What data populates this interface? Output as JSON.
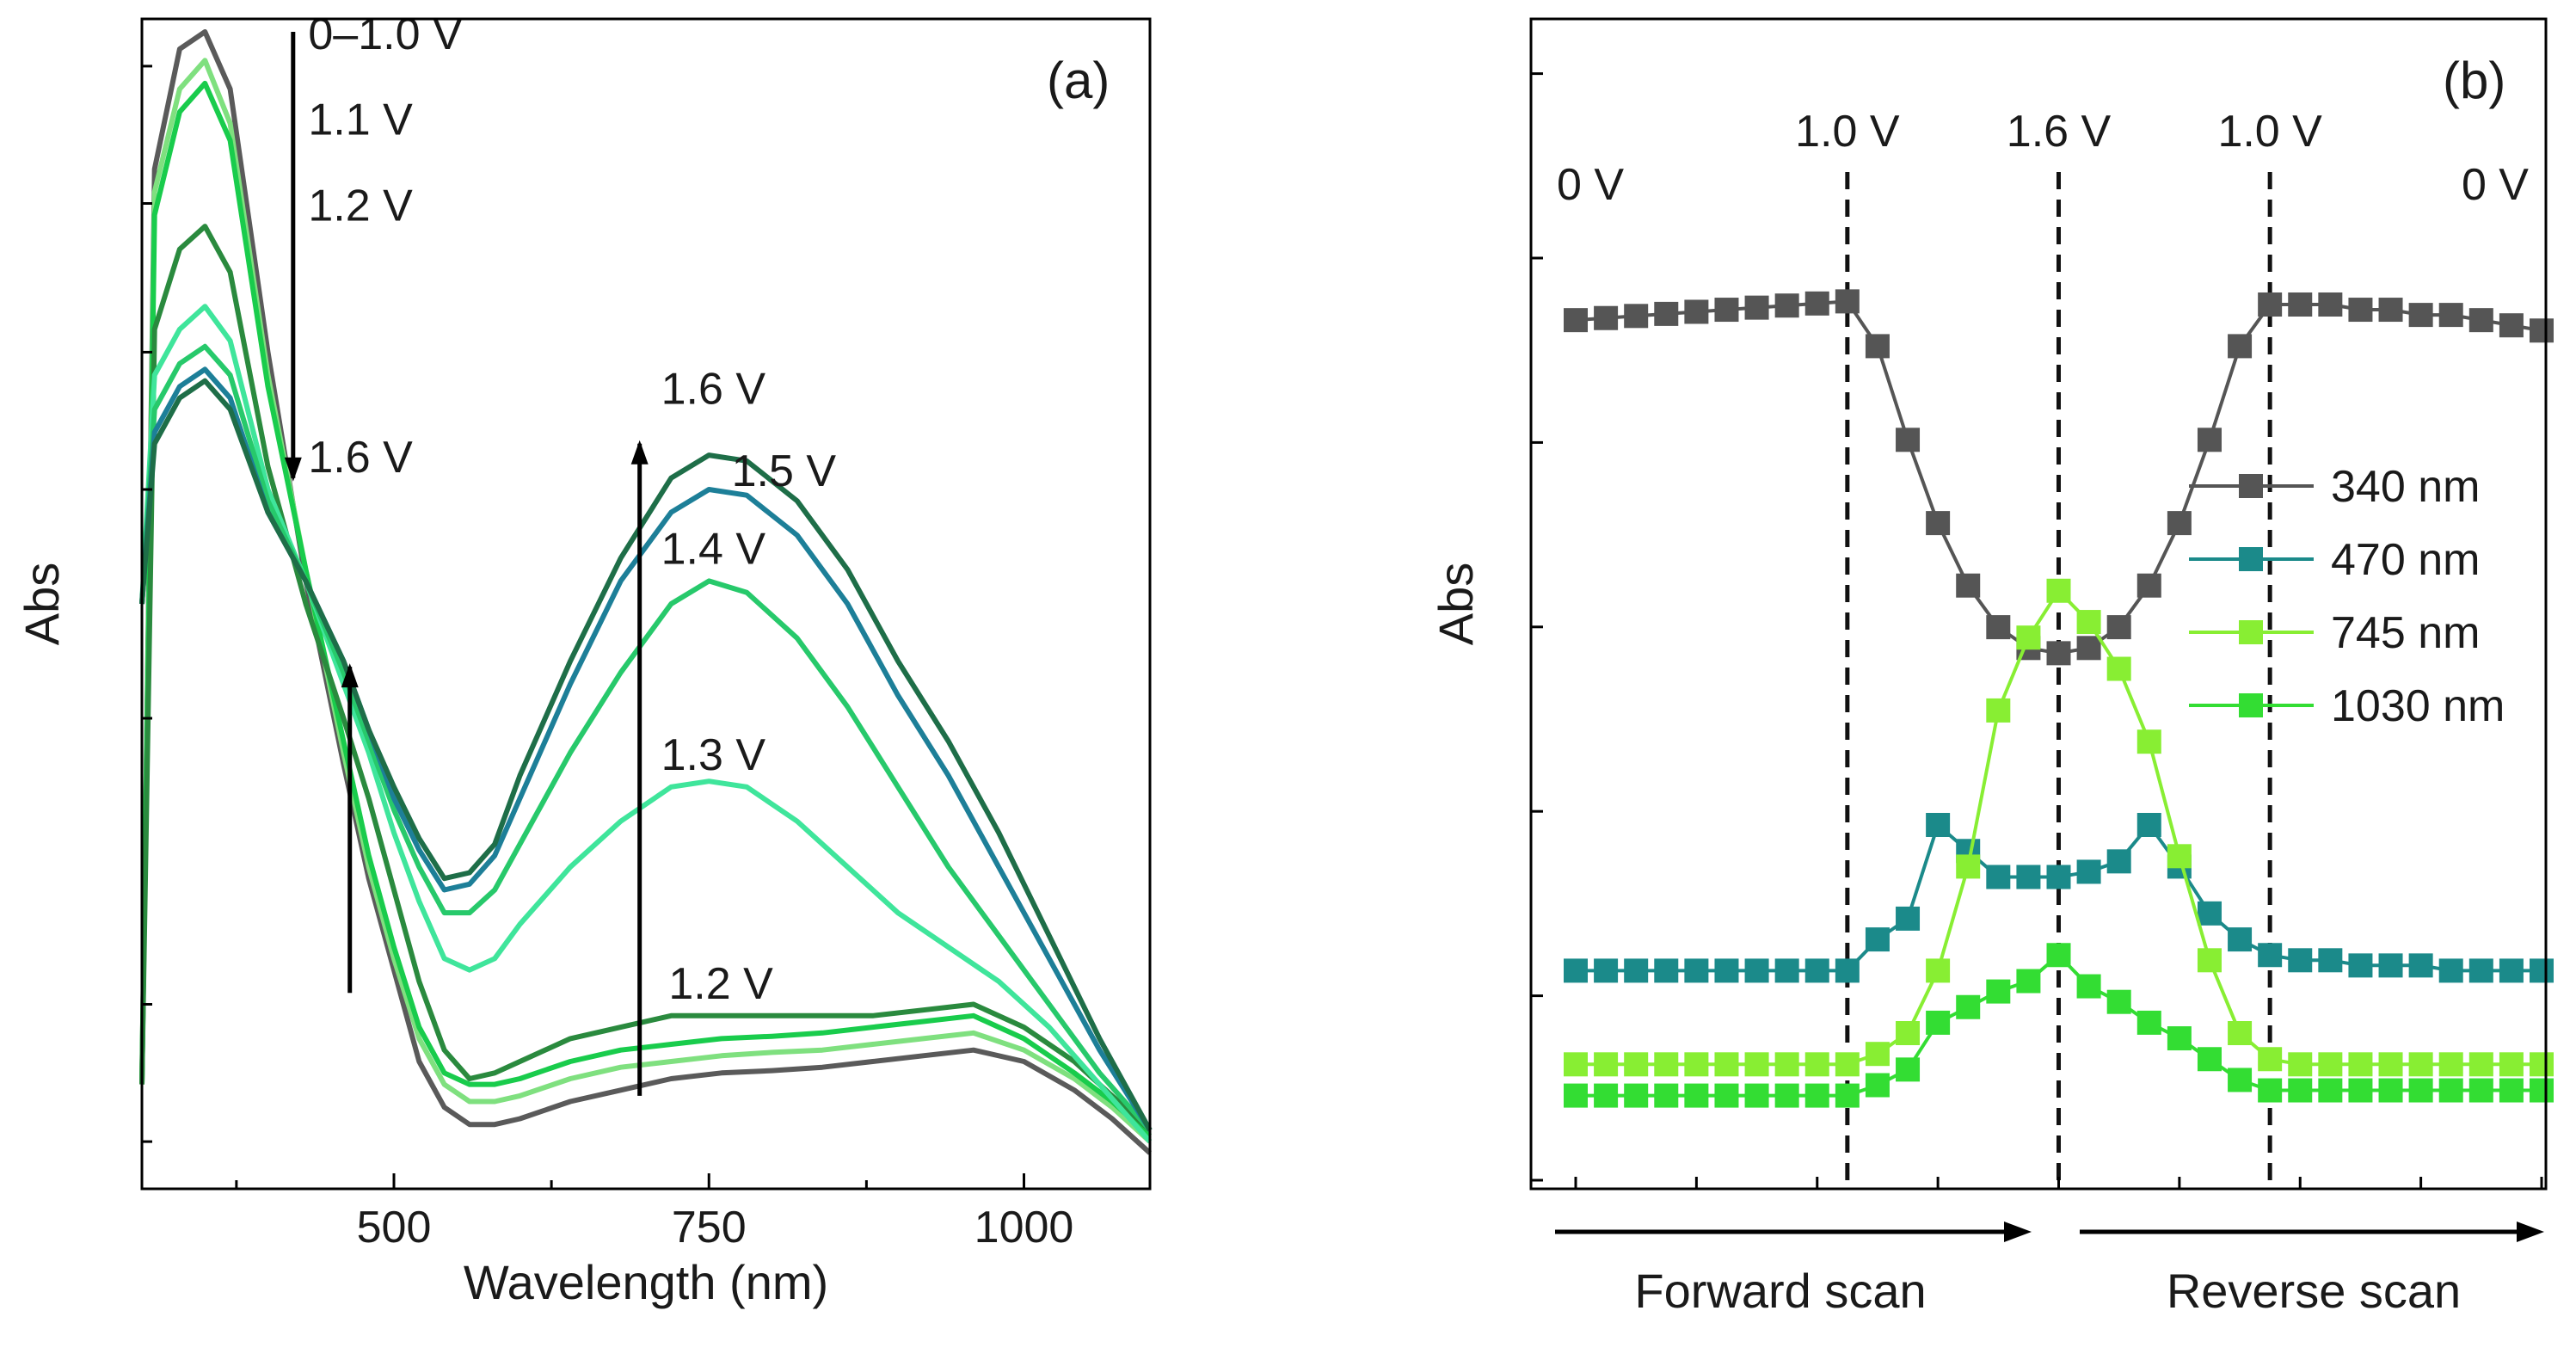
{
  "chart_data": [
    {
      "type": "line",
      "panel_label": "(a)",
      "xlabel": "Wavelength (nm)",
      "ylabel": "Abs",
      "xlim": [
        300,
        1100
      ],
      "ylim": [
        0,
        1
      ],
      "x_ticks": [
        500,
        750,
        1000
      ],
      "x_tick_labels": [
        "500",
        "750",
        "1000"
      ],
      "grid": false,
      "annotations": [
        {
          "text": "0–1.0 V",
          "x": 432,
          "y": 0.985
        },
        {
          "text": "1.1 V",
          "x": 432,
          "y": 0.91
        },
        {
          "text": "1.2 V",
          "x": 432,
          "y": 0.835
        },
        {
          "text": "1.6 V",
          "x": 432,
          "y": 0.615
        },
        {
          "text": "1.6 V",
          "x": 712,
          "y": 0.675
        },
        {
          "text": "1.5 V",
          "x": 768,
          "y": 0.603
        },
        {
          "text": "1.4 V",
          "x": 712,
          "y": 0.535
        },
        {
          "text": "1.3 V",
          "x": 712,
          "y": 0.355
        },
        {
          "text": "1.2 V",
          "x": 718,
          "y": 0.155
        }
      ],
      "arrows": [
        {
          "from": [
            420,
            1.0
          ],
          "to": [
            420,
            0.61
          ],
          "direction": "down"
        },
        {
          "from": [
            465,
            0.16
          ],
          "to": [
            465,
            0.445
          ],
          "direction": "up"
        },
        {
          "from": [
            695,
            0.07
          ],
          "to": [
            695,
            0.64
          ],
          "direction": "up"
        }
      ],
      "series": [
        {
          "color": "#5a5a5a",
          "x": [
            300,
            310,
            330,
            350,
            370,
            400,
            430,
            460,
            480,
            500,
            520,
            540,
            560,
            580,
            600,
            640,
            680,
            720,
            760,
            800,
            840,
            880,
            920,
            960,
            1000,
            1040,
            1070,
            1100
          ],
          "y": [
            0.08,
            0.88,
            0.985,
            1.0,
            0.95,
            0.72,
            0.52,
            0.36,
            0.26,
            0.18,
            0.1,
            0.06,
            0.045,
            0.045,
            0.05,
            0.065,
            0.075,
            0.085,
            0.09,
            0.092,
            0.095,
            0.1,
            0.105,
            0.11,
            0.1,
            0.075,
            0.05,
            0.02
          ]
        },
        {
          "color": "#7fe07f",
          "x": [
            300,
            310,
            330,
            350,
            370,
            400,
            430,
            460,
            480,
            500,
            520,
            540,
            560,
            580,
            600,
            640,
            680,
            720,
            760,
            800,
            840,
            880,
            920,
            960,
            1000,
            1040,
            1070,
            1100
          ],
          "y": [
            0.08,
            0.86,
            0.95,
            0.975,
            0.92,
            0.7,
            0.53,
            0.37,
            0.27,
            0.19,
            0.12,
            0.08,
            0.065,
            0.065,
            0.07,
            0.085,
            0.095,
            0.1,
            0.105,
            0.108,
            0.11,
            0.115,
            0.12,
            0.125,
            0.11,
            0.085,
            0.06,
            0.03
          ]
        },
        {
          "color": "#19cc4c",
          "x": [
            300,
            310,
            330,
            350,
            370,
            400,
            430,
            460,
            480,
            500,
            520,
            540,
            560,
            580,
            600,
            640,
            680,
            720,
            760,
            800,
            840,
            880,
            920,
            960,
            1000,
            1040,
            1070,
            1100
          ],
          "y": [
            0.08,
            0.84,
            0.93,
            0.955,
            0.905,
            0.69,
            0.53,
            0.38,
            0.28,
            0.2,
            0.13,
            0.09,
            0.08,
            0.08,
            0.085,
            0.1,
            0.11,
            0.115,
            0.12,
            0.122,
            0.125,
            0.13,
            0.135,
            0.14,
            0.12,
            0.09,
            0.065,
            0.035
          ]
        },
        {
          "color": "#2a8a3e",
          "x": [
            300,
            310,
            330,
            350,
            370,
            400,
            430,
            460,
            480,
            500,
            520,
            540,
            560,
            580,
            600,
            640,
            680,
            720,
            760,
            800,
            840,
            880,
            920,
            960,
            1000,
            1040,
            1070,
            1100
          ],
          "y": [
            0.08,
            0.74,
            0.81,
            0.83,
            0.79,
            0.62,
            0.5,
            0.4,
            0.33,
            0.25,
            0.17,
            0.11,
            0.085,
            0.09,
            0.1,
            0.12,
            0.13,
            0.14,
            0.14,
            0.14,
            0.14,
            0.14,
            0.145,
            0.15,
            0.13,
            0.1,
            0.07,
            0.04
          ]
        },
        {
          "color": "#3fe59b",
          "x": [
            300,
            310,
            330,
            350,
            370,
            400,
            430,
            460,
            480,
            500,
            520,
            540,
            560,
            580,
            600,
            640,
            680,
            720,
            750,
            780,
            820,
            860,
            900,
            940,
            980,
            1020,
            1060,
            1100
          ],
          "y": [
            0.5,
            0.7,
            0.74,
            0.76,
            0.73,
            0.6,
            0.52,
            0.43,
            0.37,
            0.3,
            0.24,
            0.19,
            0.18,
            0.19,
            0.22,
            0.27,
            0.31,
            0.34,
            0.345,
            0.34,
            0.31,
            0.27,
            0.23,
            0.2,
            0.17,
            0.13,
            0.08,
            0.03
          ]
        },
        {
          "color": "#27c96b",
          "x": [
            300,
            310,
            330,
            350,
            370,
            400,
            430,
            460,
            480,
            500,
            520,
            540,
            560,
            580,
            600,
            640,
            680,
            720,
            750,
            780,
            820,
            860,
            900,
            940,
            980,
            1020,
            1060,
            1100
          ],
          "y": [
            0.5,
            0.67,
            0.71,
            0.725,
            0.7,
            0.59,
            0.52,
            0.44,
            0.38,
            0.32,
            0.27,
            0.23,
            0.23,
            0.25,
            0.29,
            0.37,
            0.44,
            0.5,
            0.52,
            0.51,
            0.47,
            0.41,
            0.34,
            0.27,
            0.21,
            0.15,
            0.09,
            0.04
          ]
        },
        {
          "color": "#1d7f98",
          "x": [
            300,
            310,
            330,
            350,
            370,
            400,
            430,
            460,
            480,
            500,
            520,
            540,
            560,
            580,
            600,
            640,
            680,
            720,
            750,
            780,
            820,
            860,
            900,
            940,
            980,
            1020,
            1060,
            1100
          ],
          "y": [
            0.5,
            0.65,
            0.69,
            0.705,
            0.68,
            0.58,
            0.52,
            0.45,
            0.39,
            0.33,
            0.285,
            0.25,
            0.255,
            0.28,
            0.33,
            0.43,
            0.52,
            0.58,
            0.6,
            0.595,
            0.56,
            0.5,
            0.42,
            0.35,
            0.27,
            0.19,
            0.11,
            0.04
          ]
        },
        {
          "color": "#1e6e48",
          "x": [
            300,
            310,
            330,
            350,
            370,
            400,
            430,
            460,
            480,
            500,
            520,
            540,
            560,
            580,
            600,
            640,
            680,
            720,
            750,
            780,
            820,
            860,
            900,
            940,
            980,
            1020,
            1060,
            1100
          ],
          "y": [
            0.5,
            0.64,
            0.68,
            0.695,
            0.67,
            0.58,
            0.52,
            0.45,
            0.39,
            0.34,
            0.295,
            0.26,
            0.265,
            0.29,
            0.35,
            0.45,
            0.54,
            0.61,
            0.63,
            0.625,
            0.59,
            0.53,
            0.45,
            0.38,
            0.3,
            0.21,
            0.12,
            0.04
          ]
        }
      ]
    },
    {
      "type": "line",
      "panel_label": "(b)",
      "xlabel": "",
      "ylabel": "Abs",
      "xlim": [
        0,
        32
      ],
      "ylim": [
        0,
        1
      ],
      "grid": false,
      "legend": "right",
      "scan_labels": [
        "Forward scan",
        "Reverse scan"
      ],
      "dashed_lines": [
        {
          "x": 9,
          "label": "1.0 V"
        },
        {
          "x": 16,
          "label": "1.6 V"
        },
        {
          "x": 23,
          "label": "1.0 V"
        }
      ],
      "edge_labels": [
        {
          "text": "0 V",
          "side": "left"
        },
        {
          "text": "0 V",
          "side": "right"
        }
      ],
      "x": [
        0,
        1,
        2,
        3,
        4,
        5,
        6,
        7,
        8,
        9,
        10,
        11,
        12,
        13,
        14,
        15,
        16,
        17,
        18,
        19,
        20,
        21,
        22,
        23,
        24,
        25,
        26,
        27,
        28,
        29,
        30,
        31,
        32
      ],
      "series": [
        {
          "name": "340 nm",
          "color": "#555555",
          "y": [
            0.785,
            0.787,
            0.789,
            0.791,
            0.793,
            0.795,
            0.797,
            0.799,
            0.801,
            0.803,
            0.76,
            0.67,
            0.59,
            0.53,
            0.49,
            0.47,
            0.465,
            0.47,
            0.49,
            0.53,
            0.59,
            0.67,
            0.76,
            0.8,
            0.8,
            0.8,
            0.795,
            0.795,
            0.79,
            0.79,
            0.785,
            0.78,
            0.775
          ]
        },
        {
          "name": "470 nm",
          "color": "#1b8a8a",
          "y": [
            0.16,
            0.16,
            0.16,
            0.16,
            0.16,
            0.16,
            0.16,
            0.16,
            0.16,
            0.16,
            0.19,
            0.21,
            0.3,
            0.275,
            0.25,
            0.25,
            0.25,
            0.255,
            0.265,
            0.3,
            0.26,
            0.215,
            0.19,
            0.175,
            0.17,
            0.17,
            0.165,
            0.165,
            0.165,
            0.16,
            0.16,
            0.16,
            0.16
          ]
        },
        {
          "name": "745 nm",
          "color": "#88ee33",
          "y": [
            0.07,
            0.07,
            0.07,
            0.07,
            0.07,
            0.07,
            0.07,
            0.07,
            0.07,
            0.07,
            0.08,
            0.1,
            0.16,
            0.26,
            0.41,
            0.48,
            0.525,
            0.495,
            0.45,
            0.38,
            0.27,
            0.17,
            0.1,
            0.075,
            0.07,
            0.07,
            0.07,
            0.07,
            0.07,
            0.07,
            0.07,
            0.07,
            0.07
          ]
        },
        {
          "name": "1030 nm",
          "color": "#33dd33",
          "y": [
            0.04,
            0.04,
            0.04,
            0.04,
            0.04,
            0.04,
            0.04,
            0.04,
            0.04,
            0.04,
            0.05,
            0.065,
            0.11,
            0.125,
            0.14,
            0.15,
            0.175,
            0.145,
            0.13,
            0.11,
            0.095,
            0.075,
            0.055,
            0.045,
            0.045,
            0.045,
            0.045,
            0.045,
            0.045,
            0.045,
            0.045,
            0.045,
            0.045
          ]
        }
      ]
    }
  ]
}
